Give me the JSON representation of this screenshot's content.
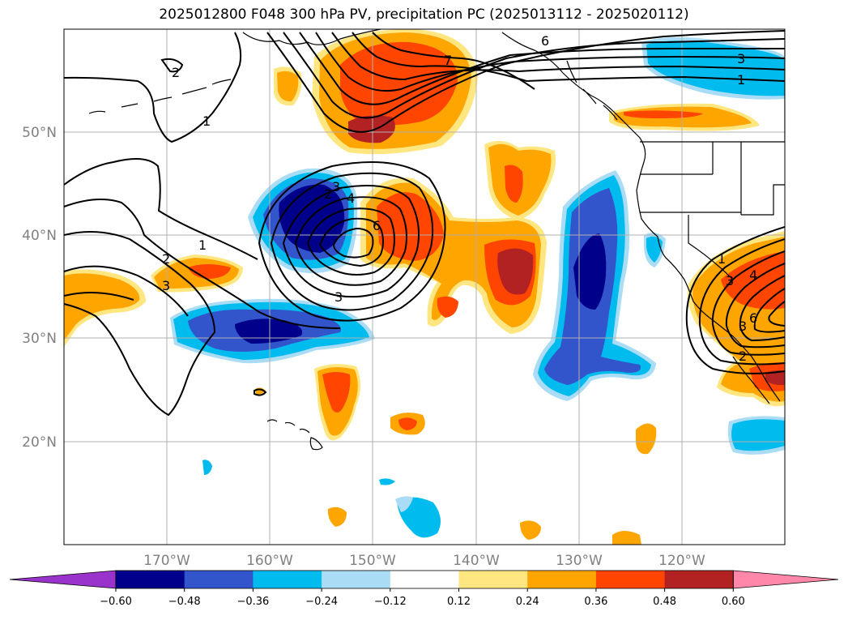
{
  "title": "2025012800 F048 300 hPa PV, precipitation PC (2025013112 - 2025020112)",
  "latitude_labels": [
    "50°N",
    "40°N",
    "30°N",
    "20°N"
  ],
  "longitude_labels": [
    "170°W",
    "160°W",
    "150°W",
    "140°W",
    "130°W",
    "120°W"
  ],
  "colorbar": {
    "ticks": [
      "−0.60",
      "−0.48",
      "−0.36",
      "−0.24",
      "−0.12",
      "0.12",
      "0.24",
      "0.36",
      "0.48",
      "0.60"
    ],
    "colors": [
      "#9933cc",
      "#00008b",
      "#3355cc",
      "#00bbee",
      "#aaddf5",
      "#ffffff",
      "#ffe680",
      "#ffa500",
      "#ff4500",
      "#b22222",
      "#ff88aa"
    ],
    "extend": "both"
  },
  "contour_labels": [
    "1",
    "2",
    "3",
    "6",
    "7",
    "3",
    "1",
    "2",
    "1",
    "3",
    "2",
    "6",
    "4",
    "3",
    "1",
    "3",
    "4",
    "6",
    "2",
    "3"
  ],
  "colors": {
    "grid": "#b0b0b0",
    "coast": "#000000",
    "contour": "#000000",
    "tick_label": "#808080"
  }
}
